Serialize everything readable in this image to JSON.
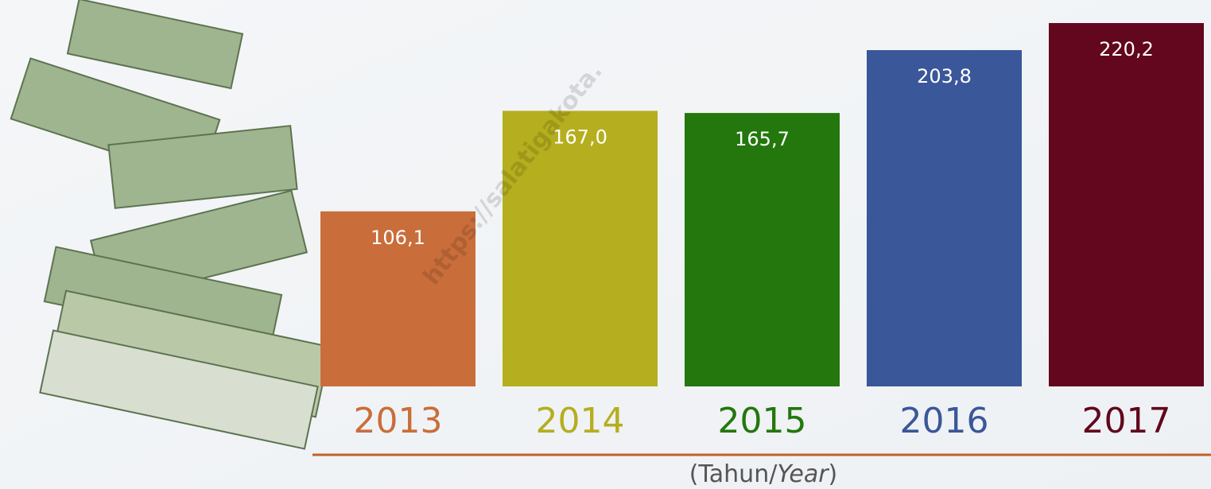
{
  "chart_data": {
    "type": "bar",
    "categories": [
      "2013",
      "2014",
      "2015",
      "2016",
      "2017"
    ],
    "values": [
      106.1,
      167.0,
      165.7,
      203.8,
      220.2
    ],
    "value_labels": [
      "106,1",
      "167,0",
      "165,7",
      "203,8",
      "220,2"
    ],
    "colors": [
      "#c96e3a",
      "#b5ae1e",
      "#23770c",
      "#3a5799",
      "#62071d"
    ],
    "ylim": [
      0,
      220.2
    ],
    "x_label_parts": [
      "(Tahun/",
      "Year",
      ")"
    ],
    "watermark": "https://salatigakota."
  }
}
